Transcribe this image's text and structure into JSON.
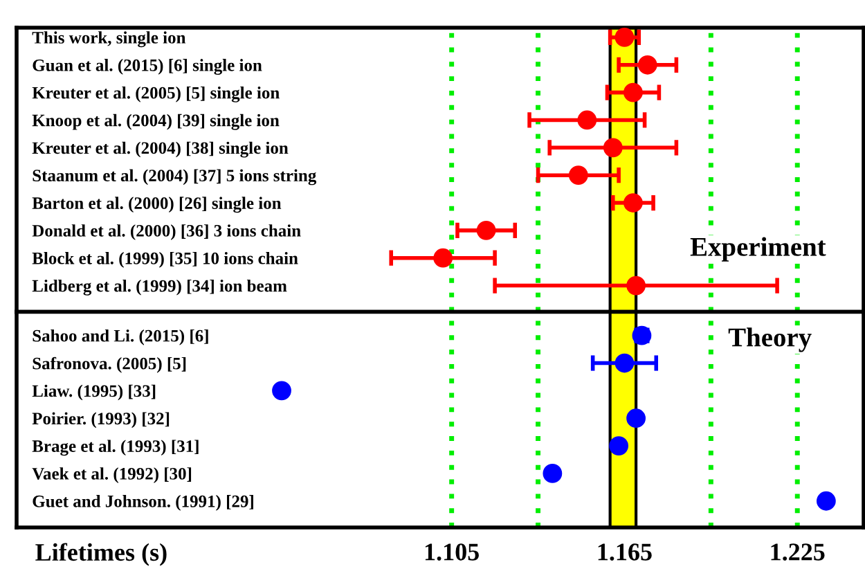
{
  "chart_data": [
    {
      "type": "scatter",
      "categories": [
        "This work, single ion",
        "Guan et al. (2015) [6] single ion",
        "Kreuter et al. (2005) [5] single ion",
        "Knoop et al. (2004) [39] single ion",
        "Kreuter et al. (2004) [38] single ion",
        "Staanum et al. (2004) [37] 5 ions string",
        "Barton et al. (2000) [26] single ion",
        "Donald et al. (2000) [36] 3 ions chain",
        "Block et al. (1999) [35] 10 ions chain",
        "Lidberg et al. (1999) [34] ion beam"
      ],
      "series": [
        {
          "color": "#ff0000",
          "values": [
            1.165,
            1.173,
            1.168,
            1.152,
            1.161,
            1.149,
            1.168,
            1.117,
            1.102,
            1.169
          ],
          "errors": [
            0.005,
            0.01,
            0.009,
            0.02,
            0.022,
            0.014,
            0.007,
            0.01,
            0.018,
            0.049
          ]
        }
      ],
      "orientation": "horizontal",
      "xlim": [
        0.954,
        1.248
      ],
      "xticks": [
        {
          "value": 1.105,
          "label": null
        },
        {
          "value": 1.135,
          "label": null
        },
        {
          "value": 1.165,
          "label": null
        },
        {
          "value": 1.195,
          "label": null
        },
        {
          "value": 1.225,
          "label": null
        }
      ],
      "bands": [
        {
          "axis": "x",
          "from": 1.16,
          "to": 1.169,
          "color": "#ffff00"
        }
      ],
      "annotations": [
        "Experiment"
      ],
      "grid": "x",
      "marker": "circle",
      "tick_labels": false
    },
    {
      "type": "scatter",
      "categories": [
        "Sahoo and Li. (2015) [6]",
        "Safronova. (2005) [5]",
        "Liaw. (1995) [33]",
        "Poirier. (1993) [32]",
        "Brage et al. (1993) [31]",
        "Vaek et al. (1992) [30]",
        "Guet and Johnson. (1991) [29]"
      ],
      "series": [
        {
          "color": "#0000ff",
          "values": [
            1.171,
            1.165,
            1.046,
            1.169,
            1.163,
            1.14,
            1.235
          ],
          "errors": [
            0.002,
            0.011,
            null,
            null,
            null,
            null,
            null
          ]
        }
      ],
      "orientation": "horizontal",
      "xlim": [
        0.954,
        1.248
      ],
      "xticks": [
        1.105,
        {
          "value": 1.135,
          "label": null
        },
        1.165,
        {
          "value": 1.195,
          "label": null
        },
        1.225
      ],
      "bands": [
        {
          "axis": "x",
          "from": 1.16,
          "to": 1.169,
          "color": "#ffff00"
        }
      ],
      "xlabel": "Lifetimes (s)",
      "annotations": [
        "Theory"
      ],
      "grid": "x",
      "marker": "circle",
      "tick_labels": "x"
    }
  ]
}
